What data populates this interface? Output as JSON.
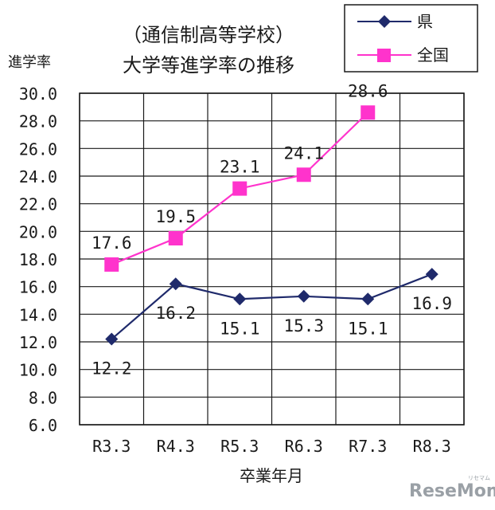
{
  "chart_data": {
    "type": "line",
    "title_lines": [
      "（通信制高等学校）",
      "大学等進学率の推移"
    ],
    "ylabel": "進学率",
    "xlabel": "卒業年月",
    "categories": [
      "R3.3",
      "R4.3",
      "R5.3",
      "R6.3",
      "R7.3",
      "R8.3"
    ],
    "yticks": [
      "6.0",
      "8.0",
      "10.0",
      "12.0",
      "14.0",
      "16.0",
      "18.0",
      "20.0",
      "22.0",
      "24.0",
      "26.0",
      "28.0",
      "30.0"
    ],
    "ylim": [
      6,
      30
    ],
    "grid": true,
    "legend_position": "top-right",
    "series": [
      {
        "name": "県",
        "color": "#1f2a6b",
        "marker": "diamond",
        "values": [
          12.2,
          16.2,
          15.1,
          15.3,
          15.1,
          16.9
        ],
        "labels": [
          "12.2",
          "16.2",
          "15.1",
          "15.3",
          "15.1",
          "16.9"
        ],
        "label_pos": [
          "below",
          "below",
          "below",
          "below",
          "below",
          "below"
        ]
      },
      {
        "name": "全国",
        "color": "#ff33cc",
        "marker": "square",
        "values": [
          17.6,
          19.5,
          23.1,
          24.1,
          28.6,
          null
        ],
        "labels": [
          "17.6",
          "19.5",
          "23.1",
          "24.1",
          "28.6",
          ""
        ],
        "label_pos": [
          "above",
          "above",
          "above",
          "above",
          "above",
          "above"
        ]
      }
    ]
  },
  "watermark": {
    "text": "ReseMom",
    "subtext": "リセマム"
  }
}
